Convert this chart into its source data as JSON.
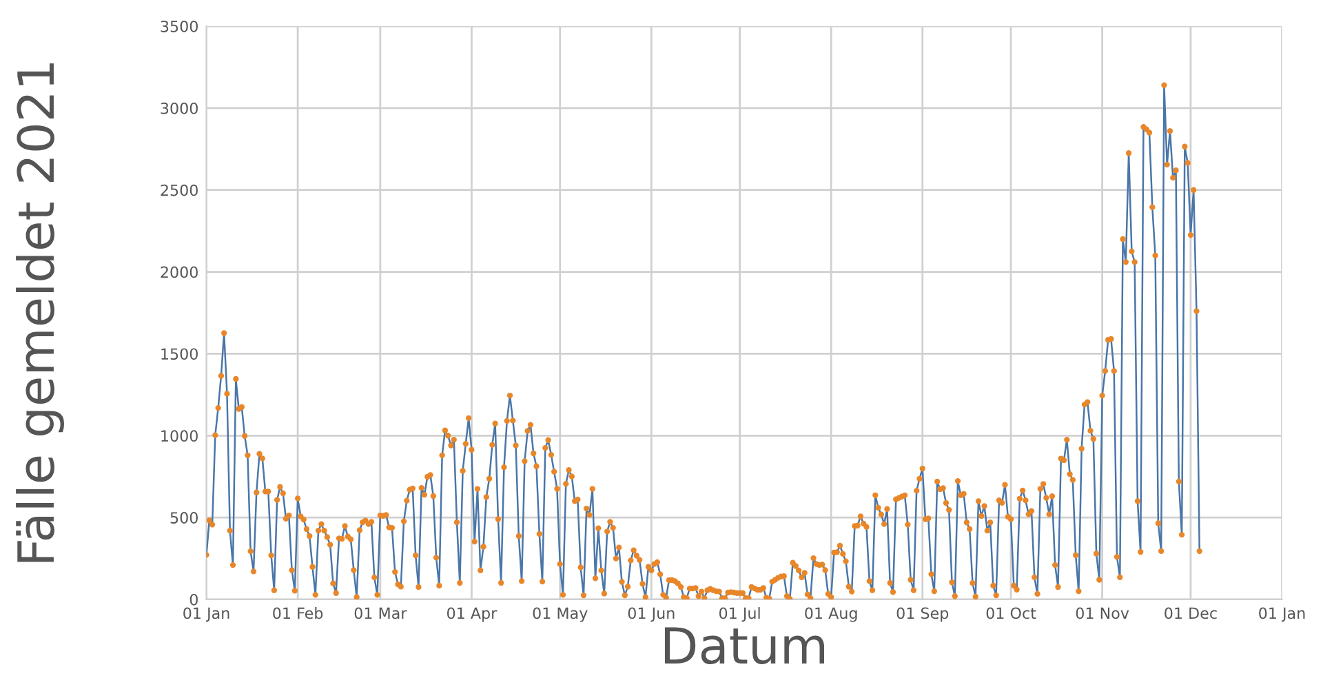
{
  "chart_data": {
    "type": "line",
    "xlabel": "Datum",
    "ylabel": "Fälle gemeldet 2021",
    "xlim": [
      "2021-01-01",
      "2022-01-01"
    ],
    "ylim": [
      0,
      3500
    ],
    "yticks": [
      0,
      500,
      1000,
      1500,
      2000,
      2500,
      3000,
      3500
    ],
    "xticks": [
      {
        "value": "2021-01-01",
        "label": "01 Jan"
      },
      {
        "value": "2021-02-01",
        "label": "01 Feb"
      },
      {
        "value": "2021-03-01",
        "label": "01 Mar"
      },
      {
        "value": "2021-04-01",
        "label": "01 Apr"
      },
      {
        "value": "2021-05-01",
        "label": "01 May"
      },
      {
        "value": "2021-06-01",
        "label": "01 Jun"
      },
      {
        "value": "2021-07-01",
        "label": "01 Jul"
      },
      {
        "value": "2021-08-01",
        "label": "01 Aug"
      },
      {
        "value": "2021-09-01",
        "label": "01 Sep"
      },
      {
        "value": "2021-10-01",
        "label": "01 Oct"
      },
      {
        "value": "2021-11-01",
        "label": "01 Nov"
      },
      {
        "value": "2021-12-01",
        "label": "01 Dec"
      },
      {
        "value": "2022-01-01",
        "label": "01 Jan"
      }
    ],
    "grid": true,
    "marker": "circle",
    "line_style": "solid",
    "series": [
      {
        "color": "#4a76a8",
        "colors": [
          "#e8872a",
          "#e8872a",
          "#e8872a",
          "#e8872a",
          "#e8872a",
          "#e8872a",
          "#e8872a",
          "#e8872a",
          "#e8872a",
          "#e8872a",
          "#e8872a",
          "#e8872a",
          "#e8872a",
          "#e8872a",
          "#e8872a",
          "#e8872a",
          "#e8872a",
          "#e8872a",
          "#e8872a",
          "#e8872a",
          "#e8872a",
          "#e8872a",
          "#e8872a",
          "#e8872a",
          "#e8872a",
          "#e8872a",
          "#e8872a",
          "#e8872a",
          "#e8872a",
          "#e8872a",
          "#e8872a",
          "#e8872a",
          "#e8872a",
          "#e8872a",
          "#e8872a",
          "#e8872a",
          "#e8872a",
          "#e8872a",
          "#e8872a",
          "#e8872a",
          "#e8872a",
          "#e8872a",
          "#e8872a",
          "#e8872a",
          "#e8872a",
          "#e8872a",
          "#e8872a",
          "#e8872a",
          "#e8872a",
          "#e8872a",
          "#e8872a",
          "#e8872a",
          "#e8872a",
          "#e8872a",
          "#e8872a",
          "#e8872a",
          "#e8872a",
          "#e8872a",
          "#e8872a",
          "#e8872a",
          "#e8872a",
          "#e8872a",
          "#e8872a",
          "#e8872a",
          "#e8872a",
          "#e8872a",
          "#e8872a",
          "#e8872a",
          "#e8872a",
          "#e8872a",
          "#e8872a",
          "#e8872a",
          "#e8872a",
          "#e8872a",
          "#e8872a",
          "#e8872a",
          "#e8872a",
          "#e8872a",
          "#e8872a",
          "#e8872a",
          "#e8872a",
          "#e8872a",
          "#e8872a",
          "#e8872a",
          "#e8872a",
          "#e8872a",
          "#e8872a",
          "#e8872a",
          "#e8872a",
          "#e8872a",
          "#e8872a",
          "#e8872a",
          "#e8872a",
          "#e8872a",
          "#e8872a",
          "#e8872a",
          "#e8872a",
          "#e8872a",
          "#e8872a",
          "#e8872a",
          "#e8872a",
          "#e8872a",
          "#e8872a",
          "#e8872a",
          "#e8872a",
          "#e8872a",
          "#e8872a",
          "#e8872a",
          "#e8872a",
          "#e8872a",
          "#e8872a",
          "#e8872a",
          "#e8872a",
          "#e8872a",
          "#e8872a",
          "#e8872a",
          "#e8872a",
          "#e8872a",
          "#e8872a",
          "#e8872a",
          "#e8872a",
          "#e8872a",
          "#e8872a",
          "#e8872a",
          "#e8872a",
          "#e8872a",
          "#e8872a",
          "#e8872a",
          "#e8872a",
          "#e8872a",
          "#e8872a",
          "#e8872a",
          "#e8872a",
          "#e8872a",
          "#e8872a",
          "#e8872a",
          "#e8872a",
          "#e8872a",
          "#e8872a",
          "#e8872a",
          "#e8872a",
          "#e8872a",
          "#e8872a",
          "#e8872a",
          "#e8872a",
          "#e8872a",
          "#e8872a",
          "#e8872a",
          "#e8872a",
          "#e8872a",
          "#e8872a",
          "#e8872a",
          "#e8872a",
          "#e8872a",
          "#e8872a",
          "#e8872a",
          "#e8872a",
          "#e8872a",
          "#e8872a",
          "#e8872a",
          "#e8872a",
          "#e8872a",
          "#e8872a",
          "#e8872a",
          "#e8872a",
          "#e8872a",
          "#e8872a",
          "#e8872a",
          "#e8872a",
          "#e8872a",
          "#e8872a",
          "#e8872a",
          "#e8872a",
          "#e8872a",
          "#e8872a",
          "#e8872a",
          "#e8872a",
          "#e8872a",
          "#e8872a",
          "#e8872a",
          "#e8872a",
          "#e8872a",
          "#e8872a",
          "#e8872a",
          "#e8872a",
          "#e8872a",
          "#e8872a",
          "#e8872a",
          "#e8872a",
          "#e8872a",
          "#e8872a",
          "#e8872a",
          "#e8872a",
          "#e8872a",
          "#e8872a",
          "#e8872a",
          "#e8872a",
          "#e8872a",
          "#e8872a",
          "#e8872a",
          "#e8872a",
          "#e8872a",
          "#e8872a",
          "#e8872a",
          "#e8872a",
          "#e8872a",
          "#e8872a",
          "#e8872a",
          "#e8872a",
          "#e8872a",
          "#e8872a",
          "#e8872a",
          "#e8872a",
          "#e8872a",
          "#e8872a",
          "#e8872a",
          "#e8872a",
          "#e8872a",
          "#e8872a",
          "#e8872a",
          "#e8872a",
          "#e8872a",
          "#e8872a",
          "#e8872a",
          "#e8872a",
          "#e8872a",
          "#e8872a",
          "#e8872a",
          "#e8872a",
          "#e8872a",
          "#e8872a",
          "#e8872a",
          "#e8872a",
          "#e8872a",
          "#e8872a",
          "#e8872a",
          "#e8872a",
          "#e8872a",
          "#e8872a",
          "#e8872a",
          "#e8872a",
          "#e8872a",
          "#e8872a",
          "#e8872a",
          "#e8872a",
          "#e8872a",
          "#e8872a",
          "#e8872a",
          "#e8872a",
          "#e8872a",
          "#e8872a",
          "#e8872a",
          "#e8872a",
          "#e8872a",
          "#e8872a",
          "#e8872a",
          "#e8872a",
          "#e8872a",
          "#e8872a",
          "#e8872a",
          "#e8872a",
          "#e8872a",
          "#e8872a",
          "#e8872a",
          "#e8872a",
          "#e8872a",
          "#e8872a",
          "#e8872a",
          "#e8872a",
          "#e8872a",
          "#e8872a",
          "#e8872a",
          "#e8872a",
          "#e8872a",
          "#e8872a",
          "#e8872a",
          "#e8872a",
          "#e8872a",
          "#e8872a",
          "#e8872a",
          "#e8872a",
          "#e8872a",
          "#e8872a",
          "#e8872a",
          "#e8872a",
          "#e8872a",
          "#e8872a",
          "#e8872a",
          "#e8872a",
          "#e8872a",
          "#e8872a",
          "#e8872a",
          "#e8872a",
          "#e8872a",
          "#e8872a",
          "#e8872a",
          "#e8872a",
          "#e8872a",
          "#e8872a",
          "#e8872a",
          "#e8872a",
          "#e8872a",
          "#e8872a",
          "#e8872a",
          "#e8872a",
          "#e8872a",
          "#e8872a",
          "#e8872a",
          "#e8872a",
          "#e8872a",
          "#e8872a",
          "#e8872a",
          "#e8872a",
          "#e8872a",
          "#e8872a",
          "#e8872a",
          "#e8872a",
          "#e8872a",
          "#e8872a",
          "#e8872a",
          "#e8872a",
          "#e8872a",
          "#e8872a",
          "#e8872a",
          "#e8872a",
          "#e8872a",
          "#e8872a",
          "#e8872a",
          "#e8872a",
          "#e8872a",
          "#e8872a",
          "#e8872a",
          "#e8872a",
          "#e8872a",
          "#e8872a",
          "#e8872a",
          "#e8872a",
          "#e8872a"
        ],
        "x": [
          "2021-01-01",
          "2021-01-02",
          "2021-01-03",
          "2021-01-04",
          "2021-01-05",
          "2021-01-06",
          "2021-01-07",
          "2021-01-08",
          "2021-01-09",
          "2021-01-10",
          "2021-01-11",
          "2021-01-12",
          "2021-01-13",
          "2021-01-14",
          "2021-01-15",
          "2021-01-16",
          "2021-01-17",
          "2021-01-18",
          "2021-01-19",
          "2021-01-20",
          "2021-01-21",
          "2021-01-22",
          "2021-01-23",
          "2021-01-24",
          "2021-01-25",
          "2021-01-26",
          "2021-01-27",
          "2021-01-28",
          "2021-01-29",
          "2021-01-30",
          "2021-01-31",
          "2021-02-01",
          "2021-02-02",
          "2021-02-03",
          "2021-02-04",
          "2021-02-05",
          "2021-02-06",
          "2021-02-07",
          "2021-02-08",
          "2021-02-09",
          "2021-02-10",
          "2021-02-11",
          "2021-02-12",
          "2021-02-13",
          "2021-02-14",
          "2021-02-15",
          "2021-02-16",
          "2021-02-17",
          "2021-02-18",
          "2021-02-19",
          "2021-02-20",
          "2021-02-21",
          "2021-02-22",
          "2021-02-23",
          "2021-02-24",
          "2021-02-25",
          "2021-02-26",
          "2021-02-27",
          "2021-02-28",
          "2021-03-01",
          "2021-03-02",
          "2021-03-03",
          "2021-03-04",
          "2021-03-05",
          "2021-03-06",
          "2021-03-07",
          "2021-03-08",
          "2021-03-09",
          "2021-03-10",
          "2021-03-11",
          "2021-03-12",
          "2021-03-13",
          "2021-03-14",
          "2021-03-15",
          "2021-03-16",
          "2021-03-17",
          "2021-03-18",
          "2021-03-19",
          "2021-03-20",
          "2021-03-21",
          "2021-03-22",
          "2021-03-23",
          "2021-03-24",
          "2021-03-25",
          "2021-03-26",
          "2021-03-27",
          "2021-03-28",
          "2021-03-29",
          "2021-03-30",
          "2021-03-31",
          "2021-04-01",
          "2021-04-02",
          "2021-04-03",
          "2021-04-04",
          "2021-04-05",
          "2021-04-06",
          "2021-04-07",
          "2021-04-08",
          "2021-04-09",
          "2021-04-10",
          "2021-04-11",
          "2021-04-12",
          "2021-04-13",
          "2021-04-14",
          "2021-04-15",
          "2021-04-16",
          "2021-04-17",
          "2021-04-18",
          "2021-04-19",
          "2021-04-20",
          "2021-04-21",
          "2021-04-22",
          "2021-04-23",
          "2021-04-24",
          "2021-04-25",
          "2021-04-26",
          "2021-04-27",
          "2021-04-28",
          "2021-04-29",
          "2021-04-30",
          "2021-05-01",
          "2021-05-02",
          "2021-05-03",
          "2021-05-04",
          "2021-05-05",
          "2021-05-06",
          "2021-05-07",
          "2021-05-08",
          "2021-05-09",
          "2021-05-10",
          "2021-05-11",
          "2021-05-12",
          "2021-05-13",
          "2021-05-14",
          "2021-05-15",
          "2021-05-16",
          "2021-05-17",
          "2021-05-18",
          "2021-05-19",
          "2021-05-20",
          "2021-05-21",
          "2021-05-22",
          "2021-05-23",
          "2021-05-24",
          "2021-05-25",
          "2021-05-26",
          "2021-05-27",
          "2021-05-28",
          "2021-05-29",
          "2021-05-30",
          "2021-05-31",
          "2021-06-01",
          "2021-06-02",
          "2021-06-03",
          "2021-06-04",
          "2021-06-05",
          "2021-06-06",
          "2021-06-07",
          "2021-06-08",
          "2021-06-09",
          "2021-06-10",
          "2021-06-11",
          "2021-06-12",
          "2021-06-13",
          "2021-06-14",
          "2021-06-15",
          "2021-06-16",
          "2021-06-17",
          "2021-06-18",
          "2021-06-19",
          "2021-06-20",
          "2021-06-21",
          "2021-06-22",
          "2021-06-23",
          "2021-06-24",
          "2021-06-25",
          "2021-06-26",
          "2021-06-27",
          "2021-06-28",
          "2021-06-29",
          "2021-06-30",
          "2021-07-01",
          "2021-07-02",
          "2021-07-03",
          "2021-07-04",
          "2021-07-05",
          "2021-07-06",
          "2021-07-07",
          "2021-07-08",
          "2021-07-09",
          "2021-07-10",
          "2021-07-11",
          "2021-07-12",
          "2021-07-13",
          "2021-07-14",
          "2021-07-15",
          "2021-07-16",
          "2021-07-17",
          "2021-07-18",
          "2021-07-19",
          "2021-07-20",
          "2021-07-21",
          "2021-07-22",
          "2021-07-23",
          "2021-07-24",
          "2021-07-25",
          "2021-07-26",
          "2021-07-27",
          "2021-07-28",
          "2021-07-29",
          "2021-07-30",
          "2021-07-31",
          "2021-08-01",
          "2021-08-02",
          "2021-08-03",
          "2021-08-04",
          "2021-08-05",
          "2021-08-06",
          "2021-08-07",
          "2021-08-08",
          "2021-08-09",
          "2021-08-10",
          "2021-08-11",
          "2021-08-12",
          "2021-08-13",
          "2021-08-14",
          "2021-08-15",
          "2021-08-16",
          "2021-08-17",
          "2021-08-18",
          "2021-08-19",
          "2021-08-20",
          "2021-08-21",
          "2021-08-22",
          "2021-08-23",
          "2021-08-24",
          "2021-08-25",
          "2021-08-26",
          "2021-08-27",
          "2021-08-28",
          "2021-08-29",
          "2021-08-30",
          "2021-08-31",
          "2021-09-01",
          "2021-09-02",
          "2021-09-03",
          "2021-09-04",
          "2021-09-05",
          "2021-09-06",
          "2021-09-07",
          "2021-09-08",
          "2021-09-09",
          "2021-09-10",
          "2021-09-11",
          "2021-09-12",
          "2021-09-13",
          "2021-09-14",
          "2021-09-15",
          "2021-09-16",
          "2021-09-17",
          "2021-09-18",
          "2021-09-19",
          "2021-09-20",
          "2021-09-21",
          "2021-09-22",
          "2021-09-23",
          "2021-09-24",
          "2021-09-25",
          "2021-09-26",
          "2021-09-27",
          "2021-09-28",
          "2021-09-29",
          "2021-09-30",
          "2021-10-01",
          "2021-10-02",
          "2021-10-03",
          "2021-10-04",
          "2021-10-05",
          "2021-10-06",
          "2021-10-07",
          "2021-10-08",
          "2021-10-09",
          "2021-10-10",
          "2021-10-11",
          "2021-10-12",
          "2021-10-13",
          "2021-10-14",
          "2021-10-15",
          "2021-10-16",
          "2021-10-17",
          "2021-10-18",
          "2021-10-19",
          "2021-10-20",
          "2021-10-21",
          "2021-10-22",
          "2021-10-23",
          "2021-10-24",
          "2021-10-25",
          "2021-10-26",
          "2021-10-27",
          "2021-10-28",
          "2021-10-29",
          "2021-10-30",
          "2021-10-31",
          "2021-11-01",
          "2021-11-02",
          "2021-11-03",
          "2021-11-04",
          "2021-11-05",
          "2021-11-06",
          "2021-11-07",
          "2021-11-08",
          "2021-11-09",
          "2021-11-10",
          "2021-11-11",
          "2021-11-12",
          "2021-11-13",
          "2021-11-14",
          "2021-11-15",
          "2021-11-16",
          "2021-11-17",
          "2021-11-18",
          "2021-11-19",
          "2021-11-20",
          "2021-11-21",
          "2021-11-22",
          "2021-11-23",
          "2021-11-24",
          "2021-11-25",
          "2021-11-26",
          "2021-11-27",
          "2021-11-28",
          "2021-11-29",
          "2021-11-30",
          "2021-12-01",
          "2021-12-02",
          "2021-12-03",
          "2021-12-04"
        ],
        "values": [
          272,
          482,
          457,
          1003,
          1169,
          1365,
          1626,
          1256,
          420,
          210,
          1346,
          1163,
          1175,
          998,
          880,
          294,
          171,
          653,
          889,
          861,
          659,
          659,
          269,
          56,
          608,
          687,
          648,
          493,
          513,
          179,
          53,
          617,
          507,
          488,
          429,
          387,
          199,
          28,
          420,
          460,
          420,
          381,
          334,
          98,
          39,
          373,
          370,
          448,
          384,
          367,
          179,
          14,
          423,
          471,
          482,
          460,
          474,
          134,
          28,
          513,
          510,
          516,
          440,
          437,
          168,
          92,
          78,
          477,
          603,
          670,
          678,
          269,
          76,
          681,
          639,
          749,
          760,
          631,
          255,
          84,
          880,
          1032,
          1000,
          940,
          975,
          471,
          101,
          785,
          950,
          1107,
          914,
          353,
          675,
          177,
          322,
          625,
          737,
          944,
          1074,
          490,
          101,
          807,
          1090,
          1245,
          1092,
          940,
          387,
          112,
          844,
          1029,
          1066,
          892,
          813,
          400,
          109,
          925,
          973,
          883,
          780,
          675,
          216,
          28,
          706,
          790,
          751,
          600,
          610,
          196,
          25,
          555,
          516,
          675,
          129,
          435,
          177,
          36,
          415,
          474,
          437,
          250,
          317,
          107,
          25,
          78,
          238,
          300,
          267,
          241,
          95,
          14,
          199,
          177,
          216,
          227,
          154,
          28,
          11,
          118,
          118,
          112,
          98,
          76,
          14,
          8,
          67,
          67,
          70,
          20,
          48,
          8,
          56,
          64,
          56,
          50,
          48,
          8,
          8,
          42,
          45,
          42,
          39,
          39,
          39,
          8,
          8,
          76,
          67,
          59,
          59,
          70,
          11,
          5,
          109,
          120,
          132,
          140,
          142,
          20,
          3,
          224,
          204,
          177,
          135,
          162,
          31,
          8,
          252,
          216,
          210,
          213,
          179,
          34,
          14,
          286,
          289,
          328,
          278,
          233,
          78,
          48,
          448,
          451,
          507,
          463,
          443,
          112,
          56,
          636,
          560,
          519,
          460,
          552,
          101,
          45,
          611,
          620,
          628,
          636,
          457,
          120,
          56,
          664,
          737,
          799,
          490,
          495,
          154,
          50,
          720,
          673,
          680,
          589,
          547,
          104,
          20,
          723,
          636,
          645,
          470,
          430,
          100,
          17,
          600,
          510,
          570,
          420,
          470,
          84,
          25,
          605,
          590,
          700,
          505,
          490,
          84,
          60,
          615,
          665,
          605,
          520,
          540,
          135,
          34,
          675,
          705,
          620,
          520,
          630,
          210,
          76,
          860,
          850,
          975,
          765,
          730,
          270,
          50,
          920,
          1190,
          1205,
          1030,
          980,
          280,
          120,
          1245,
          1395,
          1585,
          1590,
          1395,
          260,
          135,
          2200,
          2060,
          2725,
          2125,
          2060,
          600,
          290,
          2885,
          2870,
          2850,
          2395,
          2100,
          465,
          295,
          3140,
          2655,
          2860,
          2575,
          2620,
          720,
          395,
          2765,
          2665,
          2225,
          2500,
          1760,
          295
        ]
      }
    ]
  }
}
